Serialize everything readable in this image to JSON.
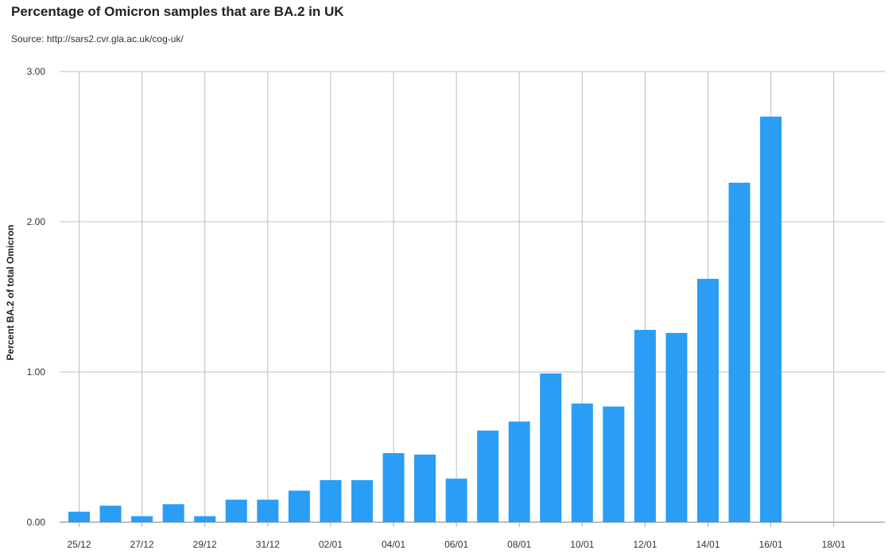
{
  "header": {
    "title": "Percentage of Omicron samples that are BA.2 in UK",
    "subtitle": "Source: http://sars2.cvr.gla.ac.uk/cog-uk/"
  },
  "colors": {
    "bar": "#2a9df4",
    "grid": "#b4bfcc",
    "axis": "#a0a8b4"
  },
  "chart_data": {
    "type": "bar",
    "title": "Percentage of Omicron samples that are BA.2 in UK",
    "ylabel": "Percent BA.2 of total Omicron",
    "xlabel": "",
    "ylim": [
      0,
      3
    ],
    "y_ticks": [
      "0.00",
      "1.00",
      "2.00",
      "3.00"
    ],
    "x_tick_labels": [
      "25/12",
      "27/12",
      "29/12",
      "31/12",
      "02/01",
      "04/01",
      "06/01",
      "08/01",
      "10/01",
      "12/01",
      "14/01",
      "16/01",
      "18/01"
    ],
    "categories": [
      "25/12",
      "26/12",
      "27/12",
      "28/12",
      "29/12",
      "30/12",
      "31/12",
      "01/01",
      "02/01",
      "03/01",
      "04/01",
      "05/01",
      "06/01",
      "07/01",
      "08/01",
      "09/01",
      "10/01",
      "11/01",
      "12/01",
      "13/01",
      "14/01",
      "15/01",
      "16/01"
    ],
    "values": [
      0.07,
      0.11,
      0.04,
      0.12,
      0.04,
      0.15,
      0.15,
      0.21,
      0.28,
      0.28,
      0.46,
      0.45,
      0.29,
      0.61,
      0.67,
      0.99,
      0.79,
      0.77,
      1.28,
      1.26,
      1.62,
      2.26,
      2.7
    ],
    "grid": true,
    "legend": "none"
  }
}
